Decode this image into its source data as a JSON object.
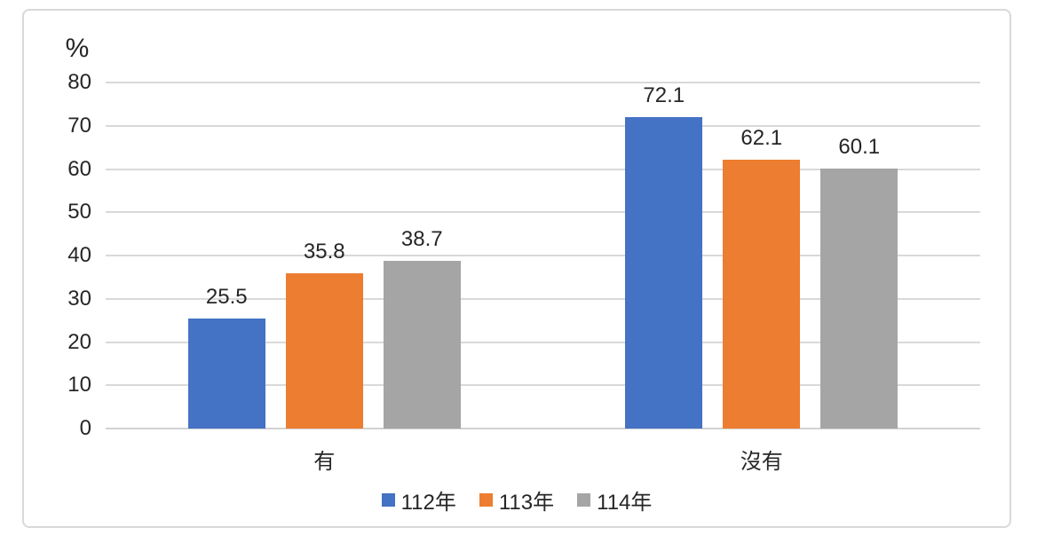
{
  "chart_data": {
    "type": "bar",
    "title": "",
    "ylabel": "%",
    "xlabel": "",
    "categories": [
      "有",
      "沒有"
    ],
    "series": [
      {
        "name": "112年",
        "color": "#4472C4",
        "values": [
          25.5,
          72.1
        ]
      },
      {
        "name": "113年",
        "color": "#ED7D31",
        "values": [
          35.8,
          62.1
        ]
      },
      {
        "name": "114年",
        "color": "#A5A5A5",
        "values": [
          38.7,
          60.1
        ]
      }
    ],
    "yticks": [
      0,
      10,
      20,
      30,
      40,
      50,
      60,
      70,
      80
    ],
    "ylim": [
      0,
      80
    ],
    "grid": true,
    "value_labels": true,
    "legend_position": "bottom"
  },
  "colors": {
    "frame_border": "#D9D9D9",
    "gridline": "#D9D9D9",
    "text": "#262626",
    "background": "#FFFFFF"
  }
}
